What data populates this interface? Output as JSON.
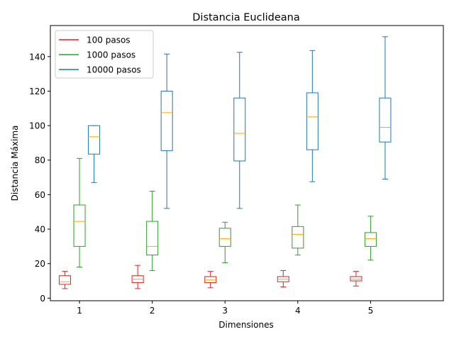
{
  "chart_data": {
    "type": "box",
    "title": "Distancia Euclideana",
    "xlabel": "Dimensiones",
    "ylabel": "Distancia Máxima",
    "categories": [
      "1",
      "2",
      "3",
      "4",
      "5"
    ],
    "xlim": [
      0.6,
      6.0
    ],
    "ylim": [
      -1.5,
      158
    ],
    "yticks": [
      0,
      20,
      40,
      60,
      80,
      100,
      120,
      140
    ],
    "grid": false,
    "legend_position": "upper-left",
    "median_color": "#ffa500",
    "series": [
      {
        "name": "100 pasos",
        "color": "#d62728",
        "offset": -0.2,
        "boxes": [
          {
            "whisker_low": 5.5,
            "q1": 8.0,
            "median": 9.5,
            "q3": 13.0,
            "whisker_high": 15.5
          },
          {
            "whisker_low": 5.5,
            "q1": 9.0,
            "median": 11.0,
            "q3": 13.0,
            "whisker_high": 19.0
          },
          {
            "whisker_low": 6.0,
            "q1": 9.0,
            "median": 10.5,
            "q3": 12.5,
            "whisker_high": 15.5
          },
          {
            "whisker_low": 6.5,
            "q1": 9.5,
            "median": 11.0,
            "q3": 12.5,
            "whisker_high": 16.0
          },
          {
            "whisker_low": 7.0,
            "q1": 10.0,
            "median": 11.0,
            "q3": 12.5,
            "whisker_high": 15.5
          }
        ]
      },
      {
        "name": "1000 pasos",
        "color": "#2ca02c",
        "offset": 0.0,
        "boxes": [
          {
            "whisker_low": 18.0,
            "q1": 30.0,
            "median": 44.5,
            "q3": 54.0,
            "whisker_high": 81.0
          },
          {
            "whisker_low": 16.0,
            "q1": 25.0,
            "median": 30.0,
            "q3": 44.5,
            "whisker_high": 62.0
          },
          {
            "whisker_low": 20.5,
            "q1": 30.0,
            "median": 34.5,
            "q3": 40.5,
            "whisker_high": 44.0
          },
          {
            "whisker_low": 25.0,
            "q1": 29.0,
            "median": 37.0,
            "q3": 41.5,
            "whisker_high": 54.0
          },
          {
            "whisker_low": 22.0,
            "q1": 30.0,
            "median": 34.5,
            "q3": 38.0,
            "whisker_high": 47.5
          }
        ]
      },
      {
        "name": "10000 pasos",
        "color": "#1f77b4",
        "offset": 0.2,
        "boxes": [
          {
            "whisker_low": 67.0,
            "q1": 83.5,
            "median": 93.5,
            "q3": 100.0,
            "whisker_high": 100.0
          },
          {
            "whisker_low": 52.0,
            "q1": 85.5,
            "median": 107.5,
            "q3": 120.0,
            "whisker_high": 141.5
          },
          {
            "whisker_low": 52.0,
            "q1": 79.5,
            "median": 95.5,
            "q3": 116.0,
            "whisker_high": 142.5
          },
          {
            "whisker_low": 67.5,
            "q1": 86.0,
            "median": 105.0,
            "q3": 119.0,
            "whisker_high": 143.5
          },
          {
            "whisker_low": 69.0,
            "q1": 90.5,
            "median": 99.0,
            "q3": 116.0,
            "whisker_high": 151.5
          }
        ]
      }
    ]
  }
}
